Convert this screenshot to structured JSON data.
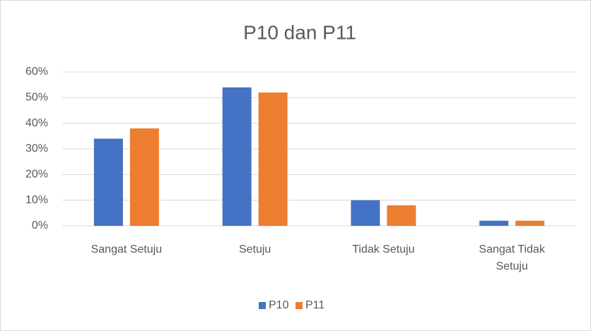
{
  "chart_data": {
    "type": "bar",
    "title": "P10 dan P11",
    "categories": [
      "Sangat Setuju",
      "Setuju",
      "Tidak Setuju",
      "Sangat Tidak Setuju"
    ],
    "series": [
      {
        "name": "P10",
        "color": "#4472c4",
        "values": [
          34,
          54,
          10,
          2
        ]
      },
      {
        "name": "P11",
        "color": "#ed7d31",
        "values": [
          38,
          52,
          8,
          2
        ]
      }
    ],
    "ylim": [
      0,
      60
    ],
    "yticks": [
      {
        "value": 0,
        "label": "0%"
      },
      {
        "value": 10,
        "label": "10%"
      },
      {
        "value": 20,
        "label": "20%"
      },
      {
        "value": 30,
        "label": "30%"
      },
      {
        "value": 40,
        "label": "40%"
      },
      {
        "value": 50,
        "label": "50%"
      },
      {
        "value": 60,
        "label": "60%"
      }
    ],
    "grid": true,
    "legend": "bottom"
  }
}
